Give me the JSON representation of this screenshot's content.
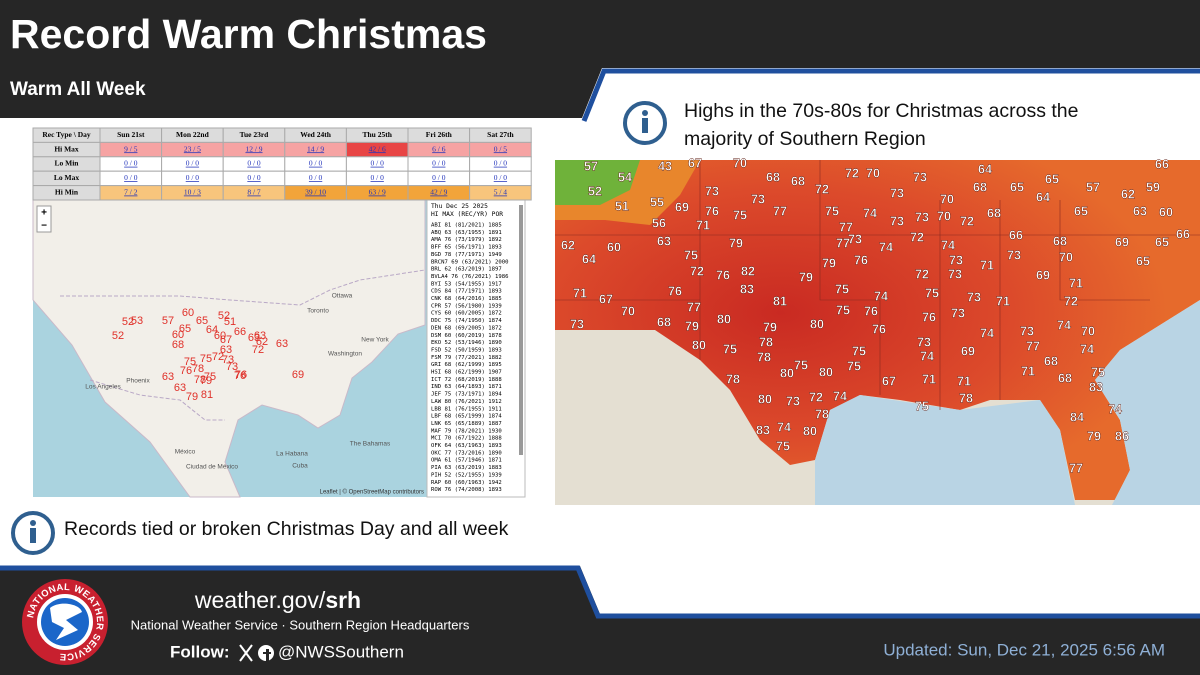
{
  "header": {
    "title": "Record Warm Christmas",
    "subtitle": "Warm All Week"
  },
  "records_table": {
    "header": [
      "Rec Type \\ Day",
      "Sun 21st",
      "Mon 22nd",
      "Tue 23rd",
      "Wed 24th",
      "Thu 25th",
      "Fri 26th",
      "Sat 27th"
    ],
    "rows": [
      {
        "label": "Hi Max",
        "cells": [
          "9 / 5",
          "23 / 5",
          "12 / 9",
          "14 / 9",
          "42 / 6",
          "6 / 6",
          "0 / 5"
        ]
      },
      {
        "label": "Lo Min",
        "cells": [
          "0 / 0",
          "0 / 0",
          "0 / 0",
          "0 / 0",
          "0 / 0",
          "0 / 0",
          "0 / 0"
        ]
      },
      {
        "label": "Lo Max",
        "cells": [
          "0 / 0",
          "0 / 0",
          "0 / 0",
          "0 / 0",
          "0 / 0",
          "0 / 0",
          "0 / 0"
        ]
      },
      {
        "label": "Hi Min",
        "cells": [
          "7 / 2",
          "10 / 3",
          "8 / 7",
          "39 / 10",
          "63 / 9",
          "42 / 9",
          "5 / 4"
        ]
      }
    ]
  },
  "record_map": {
    "zoom": [
      "+",
      "−"
    ],
    "places": [
      "Ottawa",
      "Toronto",
      "New York",
      "Washington",
      "Los Angeles",
      "Phoenix",
      "México",
      "Ciudad de México",
      "The Bahamas",
      "La Habana",
      "Cuba"
    ],
    "values": [
      52,
      53,
      52,
      57,
      60,
      65,
      65,
      52,
      60,
      68,
      64,
      51,
      66,
      60,
      67,
      63,
      63,
      63,
      62,
      63,
      75,
      72,
      73,
      75,
      63,
      76,
      78,
      78,
      79,
      76,
      63,
      76,
      73,
      79,
      81,
      69,
      75,
      72
    ],
    "attribution": "Leaflet | © OpenStreetMap contributors"
  },
  "record_list": {
    "date": "Thu Dec 25 2025",
    "columns": "HI MAX (REC/YR)  POR",
    "lines": [
      "ABI 81 (81/2021) 1885",
      "ABQ 63 (63/1955) 1891",
      "AMA 76 (73/1979) 1892",
      "BFF 65 (56/1971) 1893",
      "BGD 78 (77/1971) 1949",
      "BRCN7 69 (63/2021) 2000",
      "BRL 62 (63/2019) 1897",
      "BVLA4 76 (76/2021) 1986",
      "BYI 53 (54/1955) 1917",
      "CDS 84 (77/1971) 1893",
      "CNK 68 (64/2016) 1885",
      "CPR 57 (56/1980) 1939",
      "CYS 60 (60/2005) 1872",
      "DDC 75 (74/1950) 1874",
      "DEN 68 (69/2005) 1872",
      "DSM 60 (60/2019) 1878",
      "EKO 52 (53/1946) 1890",
      "FSD 52 (50/1959) 1893",
      "FSM 79 (77/2021) 1882",
      "GRI 68 (62/1999) 1895",
      "HSI 68 (62/1999) 1907",
      "ICT 72 (68/2019) 1888",
      "IND 63 (64/1893) 1871",
      "JEF 75 (73/1971) 1894",
      "LAW 80 (76/2021) 1912",
      "LBB 81 (76/1955) 1911",
      "LBF 68 (65/1999) 1874",
      "LNK 65 (65/1889) 1887",
      "MAF 79 (78/2021) 1930",
      "MCI 70 (67/1922) 1888",
      "OFK 64 (63/1963) 1893",
      "OKC 77 (73/2016) 1890",
      "OMA 61 (57/1946) 1871",
      "PIA 63 (63/2019) 1883",
      "PIH 52 (52/1955) 1939",
      "RAP 60 (60/1963) 1942",
      "ROW 76 (74/2008) 1893"
    ]
  },
  "left_note": "Records tied or broken Christmas Day and all week",
  "right_note": {
    "lines": [
      "Highs in the 70s-80s for Christmas across the",
      "majority of Southern Region"
    ]
  },
  "highs_map": {
    "values": [
      57,
      43,
      67,
      70,
      64,
      66,
      52,
      54,
      68,
      68,
      72,
      72,
      70,
      73,
      68,
      65,
      65,
      57,
      62,
      59,
      51,
      55,
      69,
      73,
      76,
      73,
      75,
      77,
      75,
      74,
      73,
      73,
      73,
      70,
      70,
      72,
      68,
      64,
      65,
      63,
      60,
      56,
      71,
      79,
      77,
      73,
      72,
      66,
      68,
      69,
      65,
      66,
      62,
      60,
      63,
      77,
      74,
      74,
      73,
      70,
      65,
      64,
      75,
      79,
      76,
      73,
      71,
      69,
      71,
      72,
      76,
      82,
      79,
      72,
      73,
      71,
      67,
      76,
      83,
      75,
      74,
      75,
      73,
      71,
      72,
      70,
      77,
      81,
      75,
      76,
      76,
      73,
      73,
      68,
      79,
      80,
      79,
      80,
      76,
      74,
      73,
      74,
      70,
      78,
      80,
      75,
      78,
      75,
      73,
      74,
      69,
      77,
      74,
      67,
      71,
      71,
      68,
      71,
      68,
      75,
      75,
      78,
      80,
      80,
      72,
      74,
      75,
      75,
      78,
      83,
      80,
      73,
      78,
      74,
      84,
      83,
      74,
      80,
      79,
      86,
      75,
      77
    ]
  },
  "footer": {
    "site": "weather.gov/",
    "site_bold": "srh",
    "org": "National Weather Service · Southern Region Headquarters",
    "follow": "Follow:",
    "handle": "@NWSSouthern",
    "updated": "Updated: Sun, Dec 21, 2025 6:56 AM",
    "logo_text": "NATIONAL WEATHER SERVICE"
  }
}
